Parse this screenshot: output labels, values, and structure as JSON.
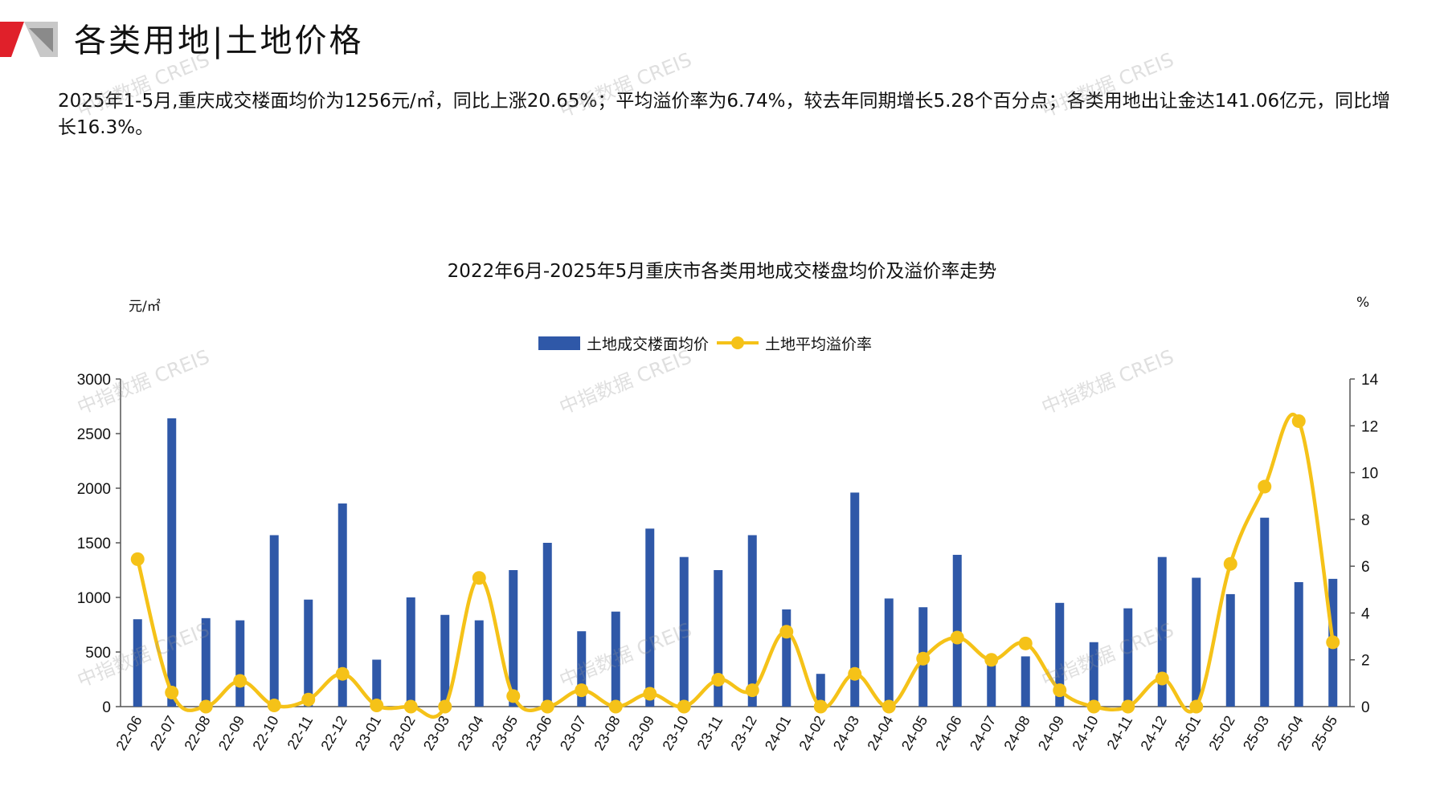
{
  "header": {
    "title": "各类用地|土地价格"
  },
  "summary": {
    "text": "2025年1-5月,重庆成交楼面均价为1256元/㎡，同比上涨20.65%；平均溢价率为6.74%，较去年同期增长5.28个百分点；各类用地出让金达141.06亿元，同比增长16.3%。"
  },
  "watermark": {
    "text": "中指数据 CREIS"
  },
  "colors": {
    "bar": "#2F58A8",
    "line": "#F5C218",
    "axis": "#555555",
    "brand_red": "#E0202A"
  },
  "icons": {
    "logo": "red-gray-corner-logo"
  },
  "chart_data": {
    "type": "bar+line",
    "title": "2022年6月-2025年5月重庆市各类用地成交楼盘均价及溢价率走势",
    "left_unit": "元/㎡",
    "right_unit": "%",
    "legend_placement": "top-center",
    "grid": false,
    "categories": [
      "22-06",
      "22-07",
      "22-08",
      "22-09",
      "22-10",
      "22-11",
      "22-12",
      "23-01",
      "23-02",
      "23-03",
      "23-04",
      "23-05",
      "23-06",
      "23-07",
      "23-08",
      "23-09",
      "23-10",
      "23-11",
      "23-12",
      "24-01",
      "24-02",
      "24-03",
      "24-04",
      "24-05",
      "24-06",
      "24-07",
      "24-08",
      "24-09",
      "24-10",
      "24-11",
      "24-12",
      "25-01",
      "25-02",
      "25-03",
      "25-04",
      "25-05"
    ],
    "y_left": {
      "range": [
        0,
        3000
      ],
      "ticks": [
        0,
        500,
        1000,
        1500,
        2000,
        2500,
        3000
      ]
    },
    "y_right": {
      "range": [
        0,
        14
      ],
      "ticks": [
        0,
        2,
        4,
        6,
        8,
        10,
        12,
        14
      ]
    },
    "series": [
      {
        "name": "土地成交楼面均价",
        "type": "bar",
        "axis": "left",
        "values": [
          800,
          2640,
          810,
          790,
          1570,
          980,
          1860,
          430,
          1000,
          840,
          790,
          1250,
          1500,
          690,
          870,
          1630,
          1370,
          1250,
          1570,
          890,
          300,
          1960,
          990,
          910,
          1390,
          400,
          460,
          950,
          590,
          900,
          1370,
          1180,
          1030,
          1730,
          1140,
          1170
        ]
      },
      {
        "name": "土地平均溢价率",
        "type": "line",
        "axis": "right",
        "values": [
          6.3,
          0.6,
          0.0,
          1.1,
          0.05,
          0.3,
          1.4,
          0.05,
          0.0,
          0.0,
          5.5,
          0.45,
          0.0,
          0.7,
          0.0,
          0.55,
          0.0,
          1.15,
          0.7,
          3.2,
          0.0,
          1.4,
          0.0,
          2.05,
          2.95,
          2.0,
          2.7,
          0.7,
          0.0,
          0.0,
          1.2,
          0.0,
          6.1,
          9.4,
          12.2,
          2.75
        ]
      }
    ]
  }
}
